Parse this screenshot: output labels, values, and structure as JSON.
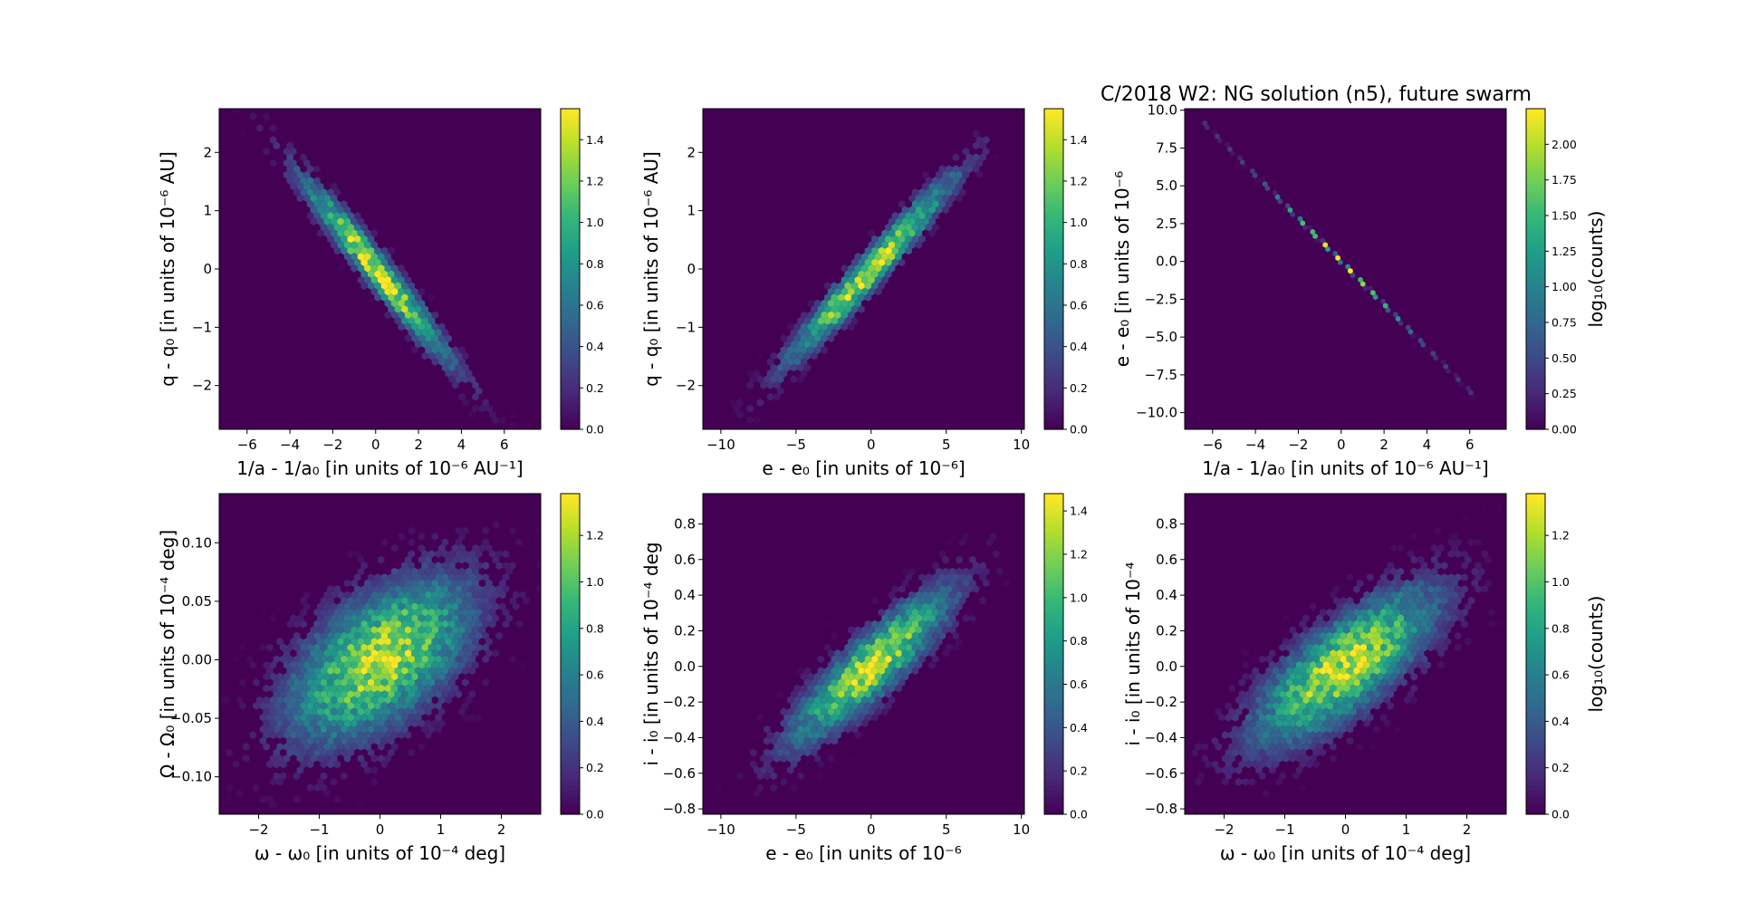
{
  "figure": {
    "title": "C/2018 W2: NG solution (n5), future swarm",
    "colormap": [
      "#440154",
      "#482878",
      "#3e4989",
      "#31688e",
      "#26828e",
      "#1f9e89",
      "#35b779",
      "#6ece58",
      "#b5de2b",
      "#fde725"
    ]
  },
  "chart_data": [
    {
      "type": "heatmap",
      "subtype": "hexbin",
      "xlabel": "1/a - 1/a₀ [in units of 10⁻⁶ AU⁻¹]",
      "ylabel": "q - q₀ [in units of 10⁻⁶ AU]",
      "xlim": [
        -7.3,
        7.7
      ],
      "ylim": [
        -2.75,
        2.75
      ],
      "xticks": [
        -6,
        -4,
        -2,
        0,
        2,
        4,
        6
      ],
      "xtick_labels": [
        "−6",
        "−4",
        "−2",
        "0",
        "2",
        "4",
        "6"
      ],
      "yticks": [
        -2,
        -1,
        0,
        1,
        2
      ],
      "ytick_labels": [
        "−2",
        "−1",
        "0",
        "1",
        "2"
      ],
      "density": {
        "x_sd": 2.1,
        "y_sd": 0.95,
        "corr": -0.97,
        "peak": 1.5,
        "x_extent": 6.5,
        "y_extent": 2.6
      },
      "colorbar": {
        "label": "",
        "range": [
          0,
          1.55
        ],
        "ticks": [
          0,
          0.2,
          0.4,
          0.6,
          0.8,
          1.0,
          1.2,
          1.4
        ],
        "tick_labels": [
          "0.0",
          "0.2",
          "0.4",
          "0.6",
          "0.8",
          "1.0",
          "1.2",
          "1.4"
        ]
      }
    },
    {
      "type": "heatmap",
      "subtype": "hexbin",
      "xlabel": "e - e₀ [in units of 10⁻⁶]",
      "ylabel": "q - q₀ [in units of 10⁻⁶ AU]",
      "xlim": [
        -11.2,
        10.2
      ],
      "ylim": [
        -2.75,
        2.75
      ],
      "xticks": [
        -10,
        -5,
        0,
        5,
        10
      ],
      "xtick_labels": [
        "−10",
        "−5",
        "0",
        "5",
        "10"
      ],
      "yticks": [
        -2,
        -1,
        0,
        1,
        2
      ],
      "ytick_labels": [
        "−2",
        "−1",
        "0",
        "1",
        "2"
      ],
      "density": {
        "x_sd": 3.3,
        "y_sd": 0.95,
        "corr": 0.97,
        "peak": 1.5,
        "x_extent": 10.0,
        "y_extent": 2.6
      },
      "colorbar": {
        "label": "",
        "range": [
          0,
          1.55
        ],
        "ticks": [
          0,
          0.2,
          0.4,
          0.6,
          0.8,
          1.0,
          1.2,
          1.4
        ],
        "tick_labels": [
          "0.0",
          "0.2",
          "0.4",
          "0.6",
          "0.8",
          "1.0",
          "1.2",
          "1.4"
        ]
      }
    },
    {
      "type": "heatmap",
      "subtype": "hexbin",
      "xlabel": "1/a - 1/a₀ [in units of 10⁻⁶ AU⁻¹]",
      "ylabel": "e - e₀ [in units of 10⁻⁶",
      "xlim": [
        -7.3,
        7.7
      ],
      "ylim": [
        -11.1,
        10.1
      ],
      "xticks": [
        -6,
        -4,
        -2,
        0,
        2,
        4,
        6
      ],
      "xtick_labels": [
        "−6",
        "−4",
        "−2",
        "0",
        "2",
        "4",
        "6"
      ],
      "yticks": [
        -10,
        -7.5,
        -5,
        -2.5,
        0,
        2.5,
        5,
        7.5,
        10
      ],
      "ytick_labels": [
        "−10.0",
        "−7.5",
        "−5.0",
        "−2.5",
        "0.0",
        "2.5",
        "5.0",
        "7.5",
        "10.0"
      ],
      "density": {
        "x_sd": 2.1,
        "y_sd": 3.0,
        "corr": -0.9999,
        "peak": 2.2,
        "x_extent": 6.4,
        "y_extent": 9.2
      },
      "colorbar": {
        "label": "log₁₀(counts)",
        "range": [
          0,
          2.25
        ],
        "ticks": [
          0,
          0.25,
          0.5,
          0.75,
          1.0,
          1.25,
          1.5,
          1.75,
          2.0
        ],
        "tick_labels": [
          "0.00",
          "0.25",
          "0.50",
          "0.75",
          "1.00",
          "1.25",
          "1.50",
          "1.75",
          "2.00"
        ]
      }
    },
    {
      "type": "heatmap",
      "subtype": "hexbin",
      "xlabel": "ω - ω₀ [in units of 10⁻⁴ deg]",
      "ylabel": "Ω - Ω₀ [in units of 10⁻⁴ deg]",
      "xlim": [
        -2.65,
        2.65
      ],
      "ylim": [
        -0.132,
        0.142
      ],
      "xticks": [
        -2,
        -1,
        0,
        1,
        2
      ],
      "xtick_labels": [
        "−2",
        "−1",
        "0",
        "1",
        "2"
      ],
      "yticks": [
        -0.1,
        -0.05,
        0.0,
        0.05,
        0.1
      ],
      "ytick_labels": [
        "−0.10",
        "−0.05",
        "0.00",
        "0.05",
        "0.10"
      ],
      "density": {
        "x_sd": 0.9,
        "y_sd": 0.042,
        "corr": 0.55,
        "peak": 1.3,
        "x_extent": 2.6,
        "y_extent": 0.13
      },
      "colorbar": {
        "label": "",
        "range": [
          0,
          1.38
        ],
        "ticks": [
          0,
          0.2,
          0.4,
          0.6,
          0.8,
          1.0,
          1.2
        ],
        "tick_labels": [
          "0.0",
          "0.2",
          "0.4",
          "0.6",
          "0.8",
          "1.0",
          "1.2"
        ]
      }
    },
    {
      "type": "heatmap",
      "subtype": "hexbin",
      "xlabel": "e - e₀ [in units of 10⁻⁶",
      "ylabel": "i - i₀ [in units of 10⁻⁴ deg",
      "xlim": [
        -11.2,
        10.2
      ],
      "ylim": [
        -0.83,
        0.97
      ],
      "xticks": [
        -10,
        -5,
        0,
        5,
        10
      ],
      "xtick_labels": [
        "−10",
        "−5",
        "0",
        "5",
        "10"
      ],
      "yticks": [
        -0.8,
        -0.6,
        -0.4,
        -0.2,
        0.0,
        0.2,
        0.4,
        0.6,
        0.8
      ],
      "ytick_labels": [
        "−0.8",
        "−0.6",
        "−0.4",
        "−0.2",
        "0.0",
        "0.2",
        "0.4",
        "0.6",
        "0.8"
      ],
      "density": {
        "x_sd": 3.2,
        "y_sd": 0.26,
        "corr": 0.88,
        "peak": 1.4,
        "x_extent": 10.0,
        "y_extent": 0.95
      },
      "colorbar": {
        "label": "",
        "range": [
          0,
          1.48
        ],
        "ticks": [
          0,
          0.2,
          0.4,
          0.6,
          0.8,
          1.0,
          1.2,
          1.4
        ],
        "tick_labels": [
          "0.0",
          "0.2",
          "0.4",
          "0.6",
          "0.8",
          "1.0",
          "1.2",
          "1.4"
        ]
      }
    },
    {
      "type": "heatmap",
      "subtype": "hexbin",
      "xlabel": "ω - ω₀ [in units of 10⁻⁴ deg]",
      "ylabel": "i - i₀ [in units of 10⁻⁴",
      "xlim": [
        -2.65,
        2.65
      ],
      "ylim": [
        -0.83,
        0.97
      ],
      "xticks": [
        -2,
        -1,
        0,
        1,
        2
      ],
      "xtick_labels": [
        "−2",
        "−1",
        "0",
        "1",
        "2"
      ],
      "yticks": [
        -0.8,
        -0.6,
        -0.4,
        -0.2,
        0.0,
        0.2,
        0.4,
        0.6,
        0.8
      ],
      "ytick_labels": [
        "−0.8",
        "−0.6",
        "−0.4",
        "−0.2",
        "0.0",
        "0.2",
        "0.4",
        "0.6",
        "0.8"
      ],
      "density": {
        "x_sd": 0.9,
        "y_sd": 0.26,
        "corr": 0.75,
        "peak": 1.3,
        "x_extent": 2.6,
        "y_extent": 0.95
      },
      "colorbar": {
        "label": "log₁₀(counts)",
        "range": [
          0,
          1.38
        ],
        "ticks": [
          0,
          0.2,
          0.4,
          0.6,
          0.8,
          1.0,
          1.2
        ],
        "tick_labels": [
          "0.0",
          "0.2",
          "0.4",
          "0.6",
          "0.8",
          "1.0",
          "1.2"
        ]
      }
    }
  ]
}
